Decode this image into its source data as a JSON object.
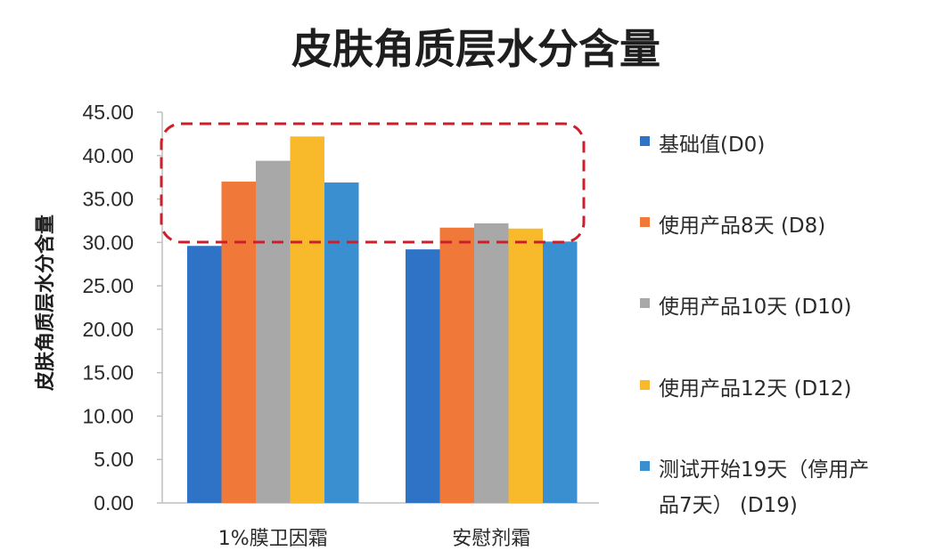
{
  "chart_data": {
    "type": "bar",
    "title": "皮肤角质层水分含量",
    "ylabel": "皮肤角质层水分含量",
    "xlabel": "",
    "ylim": [
      0,
      45
    ],
    "yticks": [
      "0.00",
      "5.00",
      "10.00",
      "15.00",
      "20.00",
      "25.00",
      "30.00",
      "35.00",
      "40.00",
      "45.00"
    ],
    "categories": [
      "1%膜卫因霜",
      "安慰剂霜"
    ],
    "series": [
      {
        "name": "基础值(D0)",
        "color": "#2f73c6",
        "values": [
          29.6,
          29.2
        ]
      },
      {
        "name": "使用产品8天 (D8)",
        "color": "#f07838",
        "values": [
          37.0,
          31.7
        ]
      },
      {
        "name": "使用产品10天 (D10)",
        "color": "#a8a8a8",
        "values": [
          39.4,
          32.2
        ]
      },
      {
        "name": "使用产品12天 (D12)",
        "color": "#f8b92a",
        "values": [
          42.2,
          31.6
        ]
      },
      {
        "name": "测试开始19天（停用产品7天） (D19)",
        "color": "#3a8fd0",
        "values": [
          36.9,
          30.1
        ]
      }
    ],
    "legend_display": [
      "基础值(D0)",
      "使用产品8天 (D8)",
      "使用产品10天 (D10)",
      "使用产品12天 (D12)",
      "测试开始19天（停用产",
      "品7天） (D19)"
    ],
    "legend_position": "right",
    "grid": false,
    "highlight_color": "#cc1f2b"
  }
}
